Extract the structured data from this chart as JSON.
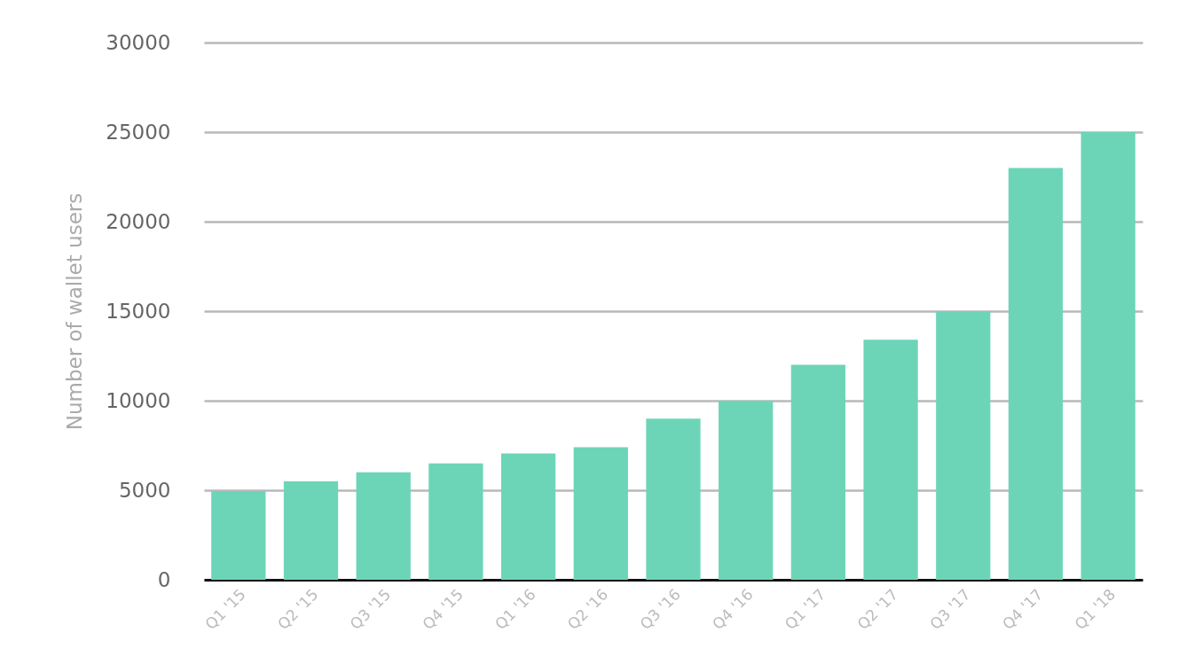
{
  "chart_data": {
    "type": "bar",
    "ylabel": "Number of wallet users",
    "categories": [
      "Q1 '15",
      "Q2 '15",
      "Q3 '15",
      "Q4 '15",
      "Q1 '16",
      "Q2 '16",
      "Q3 '16",
      "Q4 '16",
      "Q1 '17",
      "Q2 '17",
      "Q3 '17",
      "Q4 '17",
      "Q1 '18"
    ],
    "values": [
      4950,
      5500,
      6000,
      6500,
      7050,
      7400,
      9000,
      10000,
      12000,
      13400,
      15000,
      23000,
      25000
    ],
    "color": "#6dd5b7",
    "ylim": [
      0,
      30000
    ],
    "yticks": [
      0,
      5000,
      10000,
      15000,
      20000,
      25000,
      30000
    ],
    "grid": "y"
  }
}
